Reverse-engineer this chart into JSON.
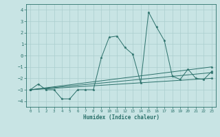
{
  "xlabel": "Humidex (Indice chaleur)",
  "xlim": [
    -0.5,
    23.5
  ],
  "ylim": [
    -4.5,
    4.5
  ],
  "yticks": [
    -4,
    -3,
    -2,
    -1,
    0,
    1,
    2,
    3,
    4
  ],
  "xticks": [
    0,
    1,
    2,
    3,
    4,
    5,
    6,
    7,
    8,
    9,
    10,
    11,
    12,
    13,
    14,
    15,
    16,
    17,
    18,
    19,
    20,
    21,
    22,
    23
  ],
  "bg_color": "#c8e4e4",
  "grid_color": "#aacece",
  "line_color": "#2a706a",
  "lines": [
    {
      "x": [
        0,
        1,
        2,
        3,
        4,
        5,
        6,
        7,
        8,
        9,
        10,
        11,
        12,
        13,
        14,
        15,
        16,
        17,
        18,
        19,
        20,
        21,
        22,
        23
      ],
      "y": [
        -3.0,
        -2.5,
        -3.0,
        -3.0,
        -3.8,
        -3.8,
        -3.0,
        -3.0,
        -3.0,
        -0.2,
        1.6,
        1.7,
        0.7,
        0.1,
        -2.4,
        3.8,
        2.5,
        1.3,
        -1.8,
        -2.1,
        -1.2,
        -2.0,
        -2.1,
        -1.4
      ],
      "marker": true
    },
    {
      "x": [
        0,
        23
      ],
      "y": [
        -3.0,
        -1.0
      ],
      "marker": true
    },
    {
      "x": [
        0,
        23
      ],
      "y": [
        -3.0,
        -1.5
      ],
      "marker": true
    },
    {
      "x": [
        0,
        23
      ],
      "y": [
        -3.0,
        -2.0
      ],
      "marker": true
    }
  ]
}
